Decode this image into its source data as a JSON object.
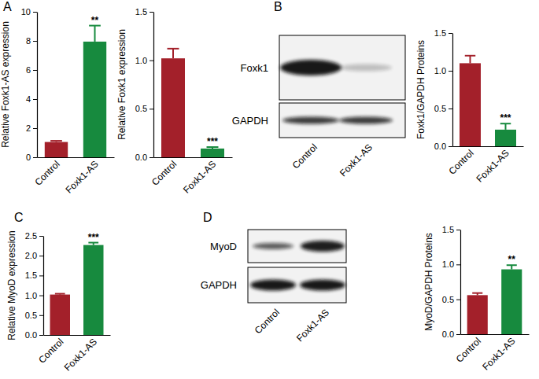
{
  "panel_labels": [
    "A",
    "B",
    "C",
    "D"
  ],
  "blots": [
    {
      "rows": [
        "Foxk1",
        "GAPDH"
      ],
      "lanes": [
        "Control",
        "Foxk1-AS"
      ]
    },
    {
      "rows": [
        "MyoD",
        "GAPDH"
      ],
      "lanes": [
        "Control",
        "Foxk1-AS"
      ]
    }
  ],
  "chart_data": [
    {
      "type": "bar",
      "y_label": "Relative Foxk1-AS expression",
      "categories": [
        "Control",
        "Foxk1-AS"
      ],
      "values": [
        1.05,
        7.95
      ],
      "errors": [
        0.08,
        1.1
      ],
      "significance": [
        null,
        "**"
      ],
      "colors": [
        "#a3202a",
        "#178a3e"
      ],
      "ylim": [
        0,
        10
      ],
      "yticks": [
        0,
        2,
        4,
        6,
        8,
        10
      ]
    },
    {
      "type": "bar",
      "y_label": "Relative Foxk1 expression",
      "categories": [
        "Control",
        "Foxk1-AS"
      ],
      "values": [
        1.02,
        0.09
      ],
      "errors": [
        0.1,
        0.015
      ],
      "significance": [
        null,
        "***"
      ],
      "colors": [
        "#a3202a",
        "#178a3e"
      ],
      "ylim": [
        0,
        1.5
      ],
      "yticks": [
        {
          "value": 0,
          "label": "0.0"
        },
        0.5,
        {
          "value": 1,
          "label": "1.0"
        },
        1.5
      ]
    },
    {
      "type": "bar",
      "y_label": "Foxk1/GAPDH Proteins",
      "categories": [
        "Control",
        "Foxk1-AS"
      ],
      "values": [
        1.1,
        0.22
      ],
      "errors": [
        0.1,
        0.08
      ],
      "significance": [
        null,
        "***"
      ],
      "colors": [
        "#a3202a",
        "#178a3e"
      ],
      "ylim": [
        0,
        1.5
      ],
      "yticks": [
        {
          "value": 0,
          "label": "0.0"
        },
        0.5,
        {
          "value": 1,
          "label": "1.0"
        },
        1.5
      ]
    },
    {
      "type": "bar",
      "y_label": "Relative MyoD expression",
      "categories": [
        "Control",
        "Foxk1-AS"
      ],
      "values": [
        1.02,
        2.27
      ],
      "errors": [
        0.02,
        0.06
      ],
      "significance": [
        null,
        "***"
      ],
      "colors": [
        "#a3202a",
        "#178a3e"
      ],
      "ylim": [
        0,
        2.5
      ],
      "yticks": [
        {
          "value": 0,
          "label": "0.0"
        },
        0.5,
        {
          "value": 1,
          "label": "1.0"
        },
        1.5,
        {
          "value": 2,
          "label": "2.0"
        },
        2.5
      ]
    },
    {
      "type": "bar",
      "y_label": "MyoD/GAPDH Proteins",
      "categories": [
        "Control",
        "Foxk1-AS"
      ],
      "values": [
        0.56,
        0.93
      ],
      "errors": [
        0.03,
        0.06
      ],
      "significance": [
        null,
        "**"
      ],
      "colors": [
        "#a3202a",
        "#178a3e"
      ],
      "ylim": [
        0,
        1.5
      ],
      "yticks": [
        {
          "value": 0,
          "label": "0.0"
        },
        0.5,
        {
          "value": 1,
          "label": "1.0"
        },
        1.5
      ]
    }
  ]
}
